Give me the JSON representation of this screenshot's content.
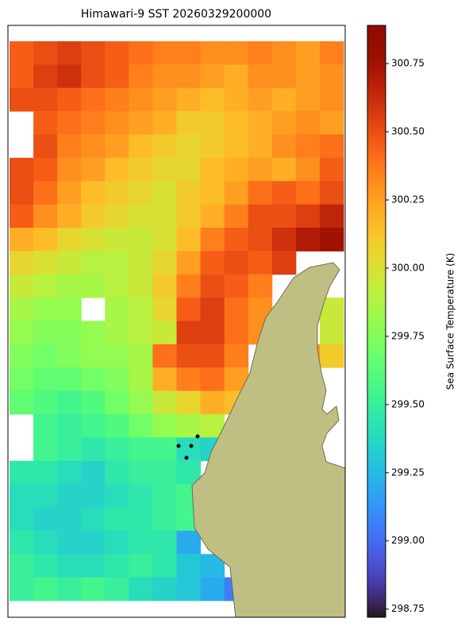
{
  "chart_data": {
    "type": "heatmap",
    "title": "Himawari-9 SST 20260329200000",
    "colorbar_label": "Sea Surface Temperature (K)",
    "colormap": "turbo",
    "clim": [
      298.72,
      300.89
    ],
    "cticks": [
      298.75,
      {
        "value": 299,
        "label": "299.00"
      },
      299.25,
      {
        "value": 299.5,
        "label": "299.50"
      },
      299.75,
      {
        "value": 300,
        "label": "300.00"
      },
      300.25,
      {
        "value": 300.5,
        "label": "300.50"
      },
      300.75
    ],
    "values": [
      [
        300.45,
        300.5,
        300.55,
        300.5,
        300.45,
        300.4,
        300.35,
        300.35,
        300.3,
        300.3,
        300.35,
        300.3,
        300.25,
        300.35
      ],
      [
        300.45,
        300.55,
        300.6,
        300.5,
        300.45,
        300.35,
        300.3,
        300.3,
        300.25,
        300.2,
        300.3,
        300.3,
        300.25,
        300.3
      ],
      [
        300.5,
        300.5,
        300.45,
        300.4,
        300.35,
        300.3,
        300.25,
        300.2,
        300.15,
        300.2,
        300.25,
        300.2,
        300.25,
        300.3
      ],
      [
        null,
        300.45,
        300.4,
        300.35,
        300.3,
        300.25,
        300.2,
        300.1,
        300.1,
        300.15,
        300.2,
        300.25,
        300.3,
        300.25
      ],
      [
        null,
        300.5,
        300.35,
        300.3,
        300.25,
        300.15,
        300.1,
        300.05,
        300.1,
        300.15,
        300.2,
        300.3,
        300.35,
        300.4
      ],
      [
        300.5,
        300.45,
        300.3,
        300.25,
        300.15,
        300.1,
        300.05,
        300.05,
        300.15,
        300.2,
        300.25,
        300.2,
        300.3,
        300.45
      ],
      [
        300.5,
        300.4,
        300.25,
        300.15,
        300.1,
        300.05,
        300.0,
        300.1,
        300.15,
        300.25,
        300.4,
        300.45,
        300.4,
        300.5
      ],
      [
        300.45,
        300.3,
        300.2,
        300.1,
        300.05,
        300.0,
        300.0,
        300.1,
        300.2,
        300.35,
        300.5,
        300.5,
        300.55,
        300.65
      ],
      [
        300.2,
        300.15,
        300.05,
        300.0,
        299.95,
        299.95,
        300.0,
        300.15,
        300.35,
        300.45,
        300.5,
        300.6,
        300.7,
        300.75
      ],
      [
        300.05,
        300.0,
        299.95,
        299.9,
        299.9,
        299.95,
        300.05,
        300.25,
        300.45,
        300.5,
        300.45,
        300.55,
        null,
        null
      ],
      [
        299.95,
        299.9,
        299.85,
        299.85,
        299.9,
        299.95,
        300.1,
        300.35,
        300.5,
        300.45,
        300.35,
        null,
        null,
        null
      ],
      [
        299.85,
        299.8,
        299.8,
        null,
        299.85,
        299.9,
        300.05,
        300.45,
        300.55,
        300.4,
        300.3,
        null,
        null,
        299.95
      ],
      [
        299.8,
        299.75,
        299.75,
        299.8,
        299.85,
        299.9,
        299.95,
        300.55,
        300.55,
        300.4,
        300.3,
        null,
        null,
        299.95
      ],
      [
        299.75,
        299.7,
        299.75,
        299.8,
        299.8,
        299.85,
        300.4,
        300.5,
        300.5,
        300.35,
        null,
        null,
        300.3,
        300.1
      ],
      [
        299.7,
        299.65,
        299.65,
        299.7,
        299.75,
        299.85,
        300.2,
        300.35,
        300.4,
        300.25,
        null,
        null,
        null,
        null
      ],
      [
        299.65,
        299.6,
        299.55,
        299.6,
        299.7,
        299.8,
        299.95,
        300.05,
        300.2,
        300.15,
        null,
        null,
        null,
        null
      ],
      [
        null,
        299.55,
        299.5,
        299.55,
        299.6,
        299.7,
        299.8,
        299.85,
        299.9,
        null,
        null,
        null,
        null,
        null
      ],
      [
        null,
        299.55,
        299.5,
        299.45,
        299.5,
        299.55,
        299.55,
        299.4,
        299.35,
        null,
        null,
        null,
        null,
        null
      ],
      [
        299.45,
        299.45,
        299.4,
        299.35,
        299.45,
        299.5,
        299.5,
        299.45,
        null,
        null,
        null,
        null,
        null,
        null
      ],
      [
        299.4,
        299.4,
        299.35,
        299.35,
        299.4,
        299.45,
        299.5,
        299.55,
        null,
        null,
        null,
        null,
        null,
        null
      ],
      [
        299.4,
        299.35,
        299.35,
        299.4,
        299.45,
        299.45,
        299.5,
        299.55,
        null,
        null,
        null,
        null,
        null,
        null
      ],
      [
        299.45,
        299.4,
        299.35,
        299.35,
        299.4,
        299.45,
        299.45,
        299.2,
        null,
        null,
        null,
        null,
        null,
        null
      ],
      [
        299.5,
        299.45,
        299.4,
        299.4,
        299.45,
        299.5,
        299.45,
        299.3,
        299.25,
        null,
        null,
        null,
        null,
        null
      ],
      [
        299.5,
        299.55,
        299.5,
        299.55,
        299.5,
        299.4,
        299.35,
        299.3,
        299.2,
        299.05,
        null,
        null,
        null,
        null
      ]
    ]
  }
}
